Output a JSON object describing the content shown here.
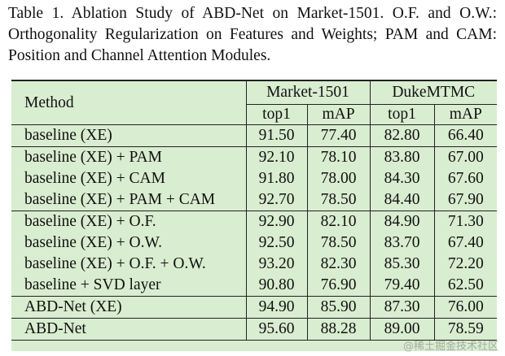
{
  "caption": "Table 1. Ablation Study of ABD-Net on Market-1501. O.F. and O.W.: Orthogonality Regularization on Features and Weights; PAM and CAM: Position and Channel Attention Modules.",
  "header": {
    "method": "Method",
    "datasets": [
      "Market-1501",
      "DukeMTMC"
    ],
    "metrics": [
      "top1",
      "mAP",
      "top1",
      "mAP"
    ]
  },
  "rows": [
    {
      "method": "baseline (XE)",
      "values": [
        "91.50",
        "77.40",
        "82.80",
        "66.40"
      ]
    },
    {
      "method": "baseline (XE) + PAM",
      "values": [
        "92.10",
        "78.10",
        "83.80",
        "67.00"
      ]
    },
    {
      "method": "baseline (XE) + CAM",
      "values": [
        "91.80",
        "78.00",
        "84.30",
        "67.60"
      ]
    },
    {
      "method": "baseline (XE) + PAM + CAM",
      "values": [
        "92.70",
        "78.50",
        "84.40",
        "67.90"
      ]
    },
    {
      "method": "baseline (XE) + O.F.",
      "values": [
        "92.90",
        "82.10",
        "84.90",
        "71.30"
      ]
    },
    {
      "method": "baseline (XE) + O.W.",
      "values": [
        "92.50",
        "78.50",
        "83.70",
        "67.40"
      ]
    },
    {
      "method": "baseline (XE) + O.F. + O.W.",
      "values": [
        "93.20",
        "82.30",
        "85.30",
        "72.20"
      ]
    },
    {
      "method": "baseline + SVD layer",
      "values": [
        "90.80",
        "76.90",
        "79.40",
        "62.50"
      ]
    },
    {
      "method": "ABD-Net (XE)",
      "values": [
        "94.90",
        "85.90",
        "87.30",
        "76.00"
      ]
    },
    {
      "method": "ABD-Net",
      "values": [
        "95.60",
        "88.28",
        "89.00",
        "78.59"
      ]
    }
  ],
  "watermark": "@稀土掘金技术社区",
  "colors": {
    "table_background": "#d9edd0",
    "rule": "#222222"
  }
}
